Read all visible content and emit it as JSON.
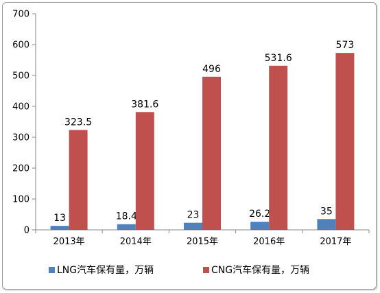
{
  "chart_data": {
    "type": "bar",
    "categories": [
      "2013年",
      "2014年",
      "2015年",
      "2016年",
      "2017年"
    ],
    "series": [
      {
        "name": "LNG汽车保有量，万辆",
        "values": [
          13,
          18.4,
          23,
          26.2,
          35
        ],
        "labels": [
          "13",
          "18.4",
          "23",
          "26.2",
          "35"
        ]
      },
      {
        "name": "CNG汽车保有量，万辆",
        "values": [
          323.5,
          381.6,
          496,
          531.6,
          573
        ],
        "labels": [
          "323.5",
          "381.6",
          "496",
          "531.6",
          "573"
        ]
      }
    ],
    "ylim": [
      0,
      700
    ],
    "yticks": [
      "0",
      "100",
      "200",
      "300",
      "400",
      "500",
      "600",
      "700"
    ],
    "colors": [
      "#4F81BD",
      "#C0504D"
    ],
    "legend_position": "bottom",
    "grid": false
  }
}
